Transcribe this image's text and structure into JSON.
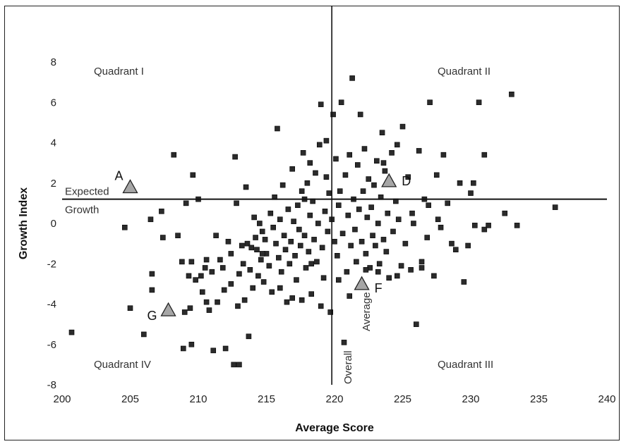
{
  "chart_data": {
    "type": "scatter",
    "title": "",
    "xlabel": "Average Score",
    "ylabel": "Growth Index",
    "xlim": [
      200,
      240
    ],
    "ylim": [
      -8,
      8
    ],
    "xticks": [
      200,
      205,
      210,
      215,
      220,
      225,
      230,
      235,
      240
    ],
    "yticks": [
      8,
      6,
      4,
      2,
      0,
      -2,
      -4,
      -6,
      -8
    ],
    "grid": false,
    "reference_lines": {
      "expected_growth": {
        "y": 1.2,
        "label_line1": "Expected",
        "label_line2": "Growth"
      },
      "overall_average": {
        "x": 219.8,
        "label_line1": "Overall",
        "label_line2": "Average"
      }
    },
    "quadrant_labels": [
      "Quadrant I",
      "Quadrant II",
      "Quadrant III",
      "Quadrant IV"
    ],
    "highlighted": [
      {
        "label": "A",
        "x": 205.0,
        "y": 1.8
      },
      {
        "label": "D",
        "x": 224.0,
        "y": 2.1
      },
      {
        "label": "F",
        "x": 222.0,
        "y": -3.0
      },
      {
        "label": "G",
        "x": 207.8,
        "y": -4.3
      }
    ],
    "points": [
      [
        200.7,
        -5.4
      ],
      [
        204.6,
        -0.2
      ],
      [
        205.0,
        -4.2
      ],
      [
        206.0,
        -5.5
      ],
      [
        206.5,
        0.2
      ],
      [
        206.6,
        -2.5
      ],
      [
        206.6,
        -3.3
      ],
      [
        207.3,
        0.6
      ],
      [
        207.4,
        -0.7
      ],
      [
        208.2,
        3.4
      ],
      [
        208.5,
        -0.6
      ],
      [
        208.8,
        -1.9
      ],
      [
        208.9,
        -6.2
      ],
      [
        209.1,
        1.0
      ],
      [
        209.3,
        -2.6
      ],
      [
        209.4,
        -4.2
      ],
      [
        209.5,
        -1.9
      ],
      [
        209.5,
        -6.0
      ],
      [
        209.6,
        2.4
      ],
      [
        209.8,
        -2.8
      ],
      [
        210.0,
        1.2
      ],
      [
        210.2,
        -2.6
      ],
      [
        210.3,
        -3.4
      ],
      [
        210.5,
        -2.2
      ],
      [
        210.6,
        -1.8
      ],
      [
        210.8,
        -4.3
      ],
      [
        211.0,
        -2.4
      ],
      [
        211.1,
        -6.3
      ],
      [
        211.3,
        -0.6
      ],
      [
        211.4,
        -3.9
      ],
      [
        211.6,
        -1.8
      ],
      [
        211.8,
        -2.2
      ],
      [
        212.0,
        -6.2
      ],
      [
        212.2,
        -0.9
      ],
      [
        212.4,
        -1.5
      ],
      [
        212.4,
        -3.0
      ],
      [
        212.6,
        -7.0
      ],
      [
        212.7,
        3.3
      ],
      [
        212.8,
        1.0
      ],
      [
        212.9,
        -4.1
      ],
      [
        213.0,
        -7.0
      ],
      [
        213.2,
        -1.1
      ],
      [
        213.3,
        -2.0
      ],
      [
        213.4,
        -3.8
      ],
      [
        213.5,
        1.8
      ],
      [
        213.6,
        -1.0
      ],
      [
        213.7,
        -5.6
      ],
      [
        213.8,
        -2.3
      ],
      [
        213.9,
        -1.2
      ],
      [
        214.0,
        -3.2
      ],
      [
        214.1,
        0.3
      ],
      [
        214.2,
        -0.7
      ],
      [
        214.3,
        -1.3
      ],
      [
        214.4,
        -2.6
      ],
      [
        214.5,
        0.0
      ],
      [
        214.6,
        -1.8
      ],
      [
        214.7,
        -0.4
      ],
      [
        214.8,
        -2.9
      ],
      [
        214.9,
        -0.8
      ],
      [
        215.0,
        -1.5
      ],
      [
        215.2,
        -2.1
      ],
      [
        215.3,
        0.5
      ],
      [
        215.4,
        -3.4
      ],
      [
        215.5,
        -0.2
      ],
      [
        215.6,
        1.3
      ],
      [
        215.7,
        -1.0
      ],
      [
        215.8,
        4.7
      ],
      [
        215.9,
        -1.7
      ],
      [
        216.0,
        0.2
      ],
      [
        216.1,
        -2.4
      ],
      [
        216.2,
        1.9
      ],
      [
        216.3,
        -0.6
      ],
      [
        216.4,
        -1.3
      ],
      [
        216.5,
        -3.9
      ],
      [
        216.6,
        0.7
      ],
      [
        216.7,
        -2.0
      ],
      [
        216.8,
        -0.9
      ],
      [
        216.9,
        -3.7
      ],
      [
        217.0,
        0.1
      ],
      [
        217.1,
        -1.6
      ],
      [
        217.2,
        -2.8
      ],
      [
        217.3,
        0.9
      ],
      [
        217.4,
        -0.3
      ],
      [
        217.5,
        -1.1
      ],
      [
        217.6,
        1.6
      ],
      [
        217.7,
        3.5
      ],
      [
        217.8,
        -0.6
      ],
      [
        217.9,
        -2.2
      ],
      [
        218.0,
        2.0
      ],
      [
        218.1,
        -1.4
      ],
      [
        218.2,
        0.4
      ],
      [
        218.3,
        -3.5
      ],
      [
        218.4,
        1.1
      ],
      [
        218.5,
        -0.8
      ],
      [
        218.6,
        2.5
      ],
      [
        218.7,
        -1.9
      ],
      [
        218.8,
        0.0
      ],
      [
        218.9,
        3.9
      ],
      [
        219.0,
        5.9
      ],
      [
        219.1,
        -1.2
      ],
      [
        219.2,
        -2.7
      ],
      [
        219.3,
        0.6
      ],
      [
        219.4,
        2.3
      ],
      [
        219.5,
        -0.4
      ],
      [
        219.6,
        1.5
      ],
      [
        219.7,
        -4.4
      ],
      [
        219.8,
        0.2
      ],
      [
        219.9,
        5.4
      ],
      [
        220.0,
        -0.9
      ],
      [
        220.1,
        3.2
      ],
      [
        220.2,
        -1.6
      ],
      [
        220.3,
        0.9
      ],
      [
        220.4,
        1.6
      ],
      [
        220.5,
        6.0
      ],
      [
        220.6,
        -0.5
      ],
      [
        220.7,
        -5.9
      ],
      [
        220.8,
        2.4
      ],
      [
        220.9,
        -2.4
      ],
      [
        221.0,
        0.4
      ],
      [
        221.1,
        3.4
      ],
      [
        221.2,
        -1.1
      ],
      [
        221.3,
        7.2
      ],
      [
        221.4,
        1.2
      ],
      [
        221.5,
        -0.3
      ],
      [
        221.6,
        -1.9
      ],
      [
        221.7,
        2.9
      ],
      [
        221.8,
        0.7
      ],
      [
        221.9,
        5.4
      ],
      [
        222.0,
        -0.9
      ],
      [
        222.1,
        1.6
      ],
      [
        222.2,
        3.7
      ],
      [
        222.3,
        -1.5
      ],
      [
        222.4,
        0.3
      ],
      [
        222.5,
        2.2
      ],
      [
        222.6,
        -2.2
      ],
      [
        222.7,
        0.8
      ],
      [
        222.8,
        -0.6
      ],
      [
        222.9,
        1.9
      ],
      [
        223.0,
        -1.1
      ],
      [
        223.1,
        3.1
      ],
      [
        223.2,
        0.0
      ],
      [
        223.3,
        -2.0
      ],
      [
        223.4,
        1.3
      ],
      [
        223.5,
        4.5
      ],
      [
        223.6,
        -0.8
      ],
      [
        223.7,
        2.6
      ],
      [
        223.8,
        -1.4
      ],
      [
        223.9,
        0.5
      ],
      [
        224.0,
        -2.7
      ],
      [
        224.2,
        3.5
      ],
      [
        224.3,
        -0.4
      ],
      [
        224.5,
        1.1
      ],
      [
        224.7,
        0.2
      ],
      [
        224.9,
        -2.1
      ],
      [
        225.0,
        4.8
      ],
      [
        225.2,
        -1.0
      ],
      [
        225.4,
        2.3
      ],
      [
        225.6,
        -2.3
      ],
      [
        225.8,
        0.0
      ],
      [
        226.0,
        -5.0
      ],
      [
        226.2,
        3.6
      ],
      [
        226.4,
        -1.9
      ],
      [
        226.6,
        1.2
      ],
      [
        226.8,
        -0.7
      ],
      [
        227.0,
        6.0
      ],
      [
        227.3,
        -2.6
      ],
      [
        227.5,
        2.4
      ],
      [
        227.8,
        -0.2
      ],
      [
        228.0,
        3.4
      ],
      [
        228.3,
        1.0
      ],
      [
        228.6,
        -1.0
      ],
      [
        228.9,
        -1.3
      ],
      [
        229.2,
        2.0
      ],
      [
        229.5,
        -2.9
      ],
      [
        229.8,
        -1.1
      ],
      [
        230.0,
        1.5
      ],
      [
        230.3,
        -0.1
      ],
      [
        230.6,
        6.0
      ],
      [
        231.0,
        3.4
      ],
      [
        231.3,
        -0.1
      ],
      [
        232.5,
        0.5
      ],
      [
        233.0,
        6.4
      ],
      [
        233.4,
        -0.1
      ],
      [
        236.2,
        0.8
      ],
      [
        231.0,
        -0.3
      ],
      [
        230.2,
        2.0
      ],
      [
        227.6,
        0.2
      ],
      [
        226.4,
        -2.2
      ],
      [
        224.6,
        -2.6
      ],
      [
        223.2,
        -2.4
      ],
      [
        218.3,
        -2.0
      ],
      [
        217.6,
        -3.8
      ],
      [
        216.0,
        -3.2
      ],
      [
        214.7,
        -1.5
      ],
      [
        213.0,
        -2.5
      ],
      [
        211.9,
        -3.3
      ],
      [
        210.6,
        -3.9
      ],
      [
        209.0,
        -4.4
      ],
      [
        219.0,
        -4.1
      ],
      [
        220.3,
        -2.8
      ],
      [
        221.1,
        -3.6
      ],
      [
        222.3,
        -2.3
      ],
      [
        219.4,
        4.1
      ],
      [
        218.2,
        3.0
      ],
      [
        216.9,
        2.7
      ],
      [
        223.6,
        3.0
      ],
      [
        224.6,
        3.9
      ],
      [
        226.9,
        0.9
      ],
      [
        225.7,
        0.5
      ],
      [
        217.8,
        1.2
      ]
    ]
  }
}
